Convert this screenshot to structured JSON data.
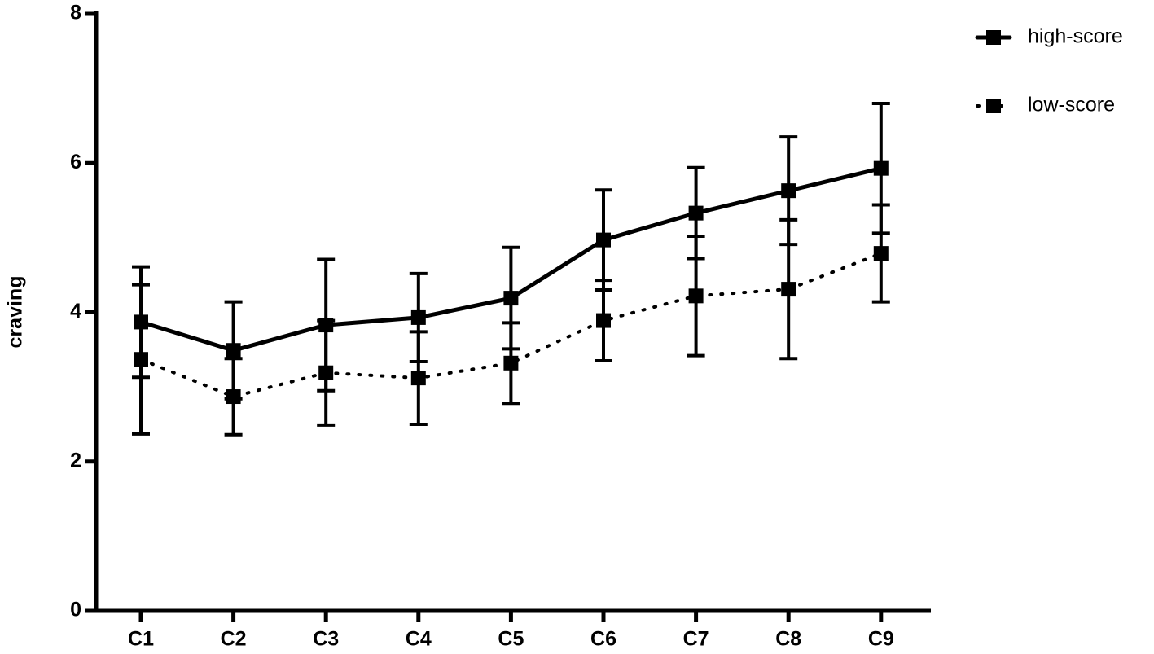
{
  "chart_data": {
    "type": "line",
    "y_label": "craving",
    "categories": [
      "C1",
      "C2",
      "C3",
      "C4",
      "C5",
      "C6",
      "C7",
      "C8",
      "C9"
    ],
    "ylim": [
      0,
      8
    ],
    "yticks": [
      0,
      2,
      4,
      6,
      8
    ],
    "legend_position": "top-right",
    "series": [
      {
        "name": "high-score",
        "color": "#000000",
        "dash": "solid",
        "values": [
          3.87,
          3.49,
          3.83,
          3.93,
          4.19,
          4.97,
          5.33,
          5.63,
          5.93
        ],
        "errors": [
          0.74,
          0.65,
          0.88,
          0.59,
          0.68,
          0.67,
          0.61,
          0.72,
          0.87
        ]
      },
      {
        "name": "low-score",
        "color": "#000000",
        "dash": "dotted",
        "values": [
          3.37,
          2.87,
          3.19,
          3.12,
          3.32,
          3.89,
          4.22,
          4.31,
          4.79
        ],
        "errors": [
          1.0,
          0.51,
          0.7,
          0.62,
          0.54,
          0.54,
          0.8,
          0.93,
          0.65
        ]
      }
    ]
  }
}
